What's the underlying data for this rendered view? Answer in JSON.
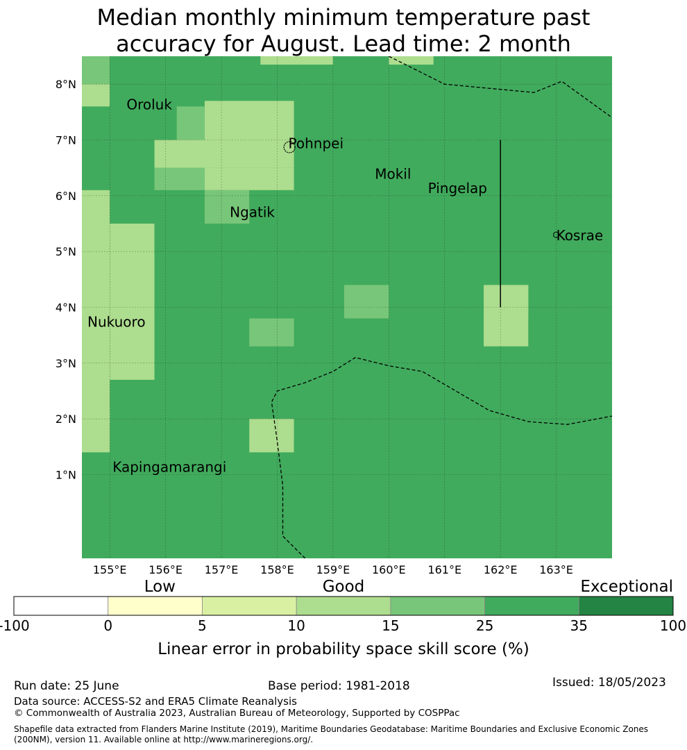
{
  "title_line1": "Median monthly minimum temperature past",
  "title_line2": "accuracy for August. Lead time: 2 month",
  "map": {
    "lon_range": [
      154.5,
      164.0
    ],
    "lat_range": [
      -0.5,
      8.5
    ],
    "grid": true,
    "lon_ticks": [
      "155°E",
      "156°E",
      "157°E",
      "158°E",
      "159°E",
      "160°E",
      "161°E",
      "162°E",
      "163°E"
    ],
    "lat_ticks": [
      "1°N",
      "2°N",
      "3°N",
      "4°N",
      "5°N",
      "6°N",
      "7°N",
      "8°N"
    ],
    "places": [
      {
        "name": "Oroluk",
        "lon": 155.3,
        "lat": 7.55
      },
      {
        "name": "Pohnpei",
        "lon": 158.2,
        "lat": 6.85
      },
      {
        "name": "Mokil",
        "lon": 159.75,
        "lat": 6.3
      },
      {
        "name": "Pingelap",
        "lon": 160.7,
        "lat": 6.05
      },
      {
        "name": "Ngatik",
        "lon": 157.15,
        "lat": 5.62
      },
      {
        "name": "Kosrae",
        "lon": 163.0,
        "lat": 5.2
      },
      {
        "name": "Nukuoro",
        "lon": 154.6,
        "lat": 3.65
      },
      {
        "name": "Kapingamarangi",
        "lon": 155.05,
        "lat": 1.05
      }
    ],
    "skill_cells": [
      {
        "lon0": 154.5,
        "lon1": 155.0,
        "lat0": 8.0,
        "lat1": 8.5,
        "cls": 4
      },
      {
        "lon0": 154.5,
        "lon1": 155.0,
        "lat0": 7.6,
        "lat1": 8.0,
        "cls": 3
      },
      {
        "lon0": 155.0,
        "lon1": 155.8,
        "lat0": 8.0,
        "lat1": 8.5,
        "cls": 5
      },
      {
        "lon0": 155.0,
        "lon1": 156.7,
        "lat0": 7.6,
        "lat1": 8.0,
        "cls": 5
      },
      {
        "lon0": 155.0,
        "lon1": 155.8,
        "lat0": 7.6,
        "lat1": 7.0,
        "cls": 5
      },
      {
        "lon0": 156.7,
        "lon1": 158.3,
        "lat0": 7.0,
        "lat1": 7.7,
        "cls": 3
      },
      {
        "lon0": 155.8,
        "lon1": 158.3,
        "lat0": 6.5,
        "lat1": 7.0,
        "cls": 3
      },
      {
        "lon0": 156.7,
        "lon1": 158.3,
        "lat0": 6.0,
        "lat1": 6.5,
        "cls": 3
      },
      {
        "lon0": 154.5,
        "lon1": 155.0,
        "lat0": 1.9,
        "lat1": 6.1,
        "cls": 3
      },
      {
        "lon0": 155.0,
        "lon1": 155.8,
        "lat0": 2.7,
        "lat1": 5.5,
        "cls": 3
      },
      {
        "lon0": 155.8,
        "lon1": 158.3,
        "lat0": 4.9,
        "lat1": 6.1,
        "cls": 5
      },
      {
        "lon0": 156.7,
        "lon1": 157.5,
        "lat0": 5.5,
        "lat1": 6.1,
        "cls": 4
      },
      {
        "lon0": 156.7,
        "lon1": 160.0,
        "lat0": 2.8,
        "lat1": 4.9,
        "cls": 5
      },
      {
        "lon0": 160.0,
        "lon1": 160.8,
        "lat0": 2.8,
        "lat1": 4.4,
        "cls": 5
      },
      {
        "lon0": 159.2,
        "lon1": 160.0,
        "lat0": 3.8,
        "lat1": 4.4,
        "cls": 4
      },
      {
        "lon0": 157.5,
        "lon1": 158.3,
        "lat0": 3.3,
        "lat1": 3.8,
        "cls": 4
      },
      {
        "lon0": 160.8,
        "lon1": 161.7,
        "lat0": 6.1,
        "lat1": 7.7,
        "cls": 5
      },
      {
        "lon0": 160.0,
        "lon1": 160.8,
        "lat0": 6.1,
        "lat1": 6.5,
        "cls": 5
      },
      {
        "lon0": 161.7,
        "lon1": 162.5,
        "lat0": 3.3,
        "lat1": 4.4,
        "cls": 3
      },
      {
        "lon0": 162.5,
        "lon1": 164.0,
        "lat0": 3.3,
        "lat1": 3.8,
        "cls": 5
      },
      {
        "lon0": 155.8,
        "lon1": 156.7,
        "lat0": 2.3,
        "lat1": 2.8,
        "cls": 5
      },
      {
        "lon0": 154.5,
        "lon1": 155.0,
        "lat0": 1.4,
        "lat1": 2.2,
        "cls": 3
      },
      {
        "lon0": 157.5,
        "lon1": 158.3,
        "lat0": 1.4,
        "lat1": 2.0,
        "cls": 3
      },
      {
        "lon0": 158.3,
        "lon1": 159.2,
        "lat0": 1.0,
        "lat1": 1.6,
        "cls": 5
      },
      {
        "lon0": 155.8,
        "lon1": 156.7,
        "lat0": 1.0,
        "lat1": 1.6,
        "cls": 5
      },
      {
        "lon0": 155.0,
        "lon1": 157.5,
        "lat0": 0.0,
        "lat1": 1.0,
        "cls": 5
      },
      {
        "lon0": 155.8,
        "lon1": 158.3,
        "lat0": -0.5,
        "lat1": 0.0,
        "cls": 5
      },
      {
        "lon0": 157.5,
        "lon1": 158.3,
        "lat0": 0.0,
        "lat1": 0.8,
        "cls": 5
      },
      {
        "lon0": 163.3,
        "lon1": 164.0,
        "lat0": 0.8,
        "lat1": 1.3,
        "cls": 5
      },
      {
        "lon0": 156.2,
        "lon1": 156.7,
        "lat0": 7.0,
        "lat1": 7.6,
        "cls": 4
      },
      {
        "lon0": 155.8,
        "lon1": 156.7,
        "lat0": 6.1,
        "lat1": 6.5,
        "cls": 4
      },
      {
        "lon0": 157.7,
        "lon1": 159.0,
        "lat0": 8.35,
        "lat1": 8.5,
        "cls": 3
      },
      {
        "lon0": 160.0,
        "lon1": 160.8,
        "lat0": 8.35,
        "lat1": 8.5,
        "cls": 3
      }
    ],
    "eez_boundaries": [
      [
        [
          160.0,
          8.5
        ],
        [
          161.0,
          8.0
        ],
        [
          162.6,
          7.85
        ],
        [
          163.1,
          8.05
        ],
        [
          164.0,
          7.4
        ]
      ],
      [
        [
          158.5,
          -0.5
        ],
        [
          158.1,
          -0.1
        ],
        [
          158.1,
          0.8
        ],
        [
          158.0,
          1.6
        ],
        [
          157.9,
          2.3
        ],
        [
          158.0,
          2.5
        ],
        [
          158.5,
          2.65
        ],
        [
          159.0,
          2.85
        ],
        [
          159.4,
          3.1
        ],
        [
          160.0,
          2.95
        ],
        [
          160.6,
          2.85
        ],
        [
          161.2,
          2.5
        ],
        [
          161.8,
          2.15
        ],
        [
          162.5,
          1.95
        ],
        [
          163.2,
          1.9
        ],
        [
          164.0,
          2.05
        ]
      ]
    ],
    "solid_line": [
      [
        162.0,
        7.0
      ],
      [
        162.0,
        4.0
      ]
    ]
  },
  "colorbar": {
    "category_labels": [
      "Low",
      "Good",
      "Exceptional"
    ],
    "ticks": [
      "-100",
      "0",
      "5",
      "10",
      "15",
      "25",
      "35",
      "100"
    ],
    "colors": [
      "#ffffff",
      "#ffffcc",
      "#d9f0a3",
      "#addd8e",
      "#78c679",
      "#41ab5d",
      "#238443"
    ],
    "label": "Linear error in probability space skill score (%)"
  },
  "footer": {
    "run_date": "Run date: 25 June",
    "base_period": "Base period: 1981-2018",
    "issued": "Issued: 18/05/2023",
    "data_source": "Data source: ACCESS-S2 and ERA5 Climate Reanalysis",
    "copyright": "© Commonwealth of Australia 2023, Australian Bureau of Meteorology, Supported by COSPPac",
    "shapefile_line1": "Shapefile data extracted from Flanders Marine Institute (2019), Maritime Boundaries Geodatabase: Maritime Boundaries and Exclusive Economic Zones",
    "shapefile_line2": "(200NM), version 11. Available online at http://www.marineregions.org/."
  }
}
